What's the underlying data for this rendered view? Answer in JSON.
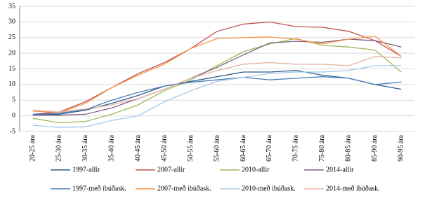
{
  "chart_data": {
    "type": "line",
    "categories": [
      "20-25 ára",
      "25-30 ára",
      "30-35 ára",
      "35-40 ára",
      "40-45 ára",
      "45-50 ára",
      "50-55 ára",
      "55-60 ára",
      "60-65 ára",
      "65-70 ára",
      "70-75 ára",
      "75-80 ára",
      "80-85 ára",
      "85-90 ára",
      "90-95 ára"
    ],
    "series": [
      {
        "name": "1997-allir",
        "color": "#2e5c8a",
        "values": [
          0.3,
          0.5,
          1.8,
          4,
          6.5,
          9.5,
          11,
          12.5,
          14,
          14,
          14.5,
          13,
          12,
          10,
          8.5
        ]
      },
      {
        "name": "2007-allir",
        "color": "#c0504d",
        "values": [
          0.5,
          1.2,
          4.5,
          9,
          13.5,
          17,
          21.5,
          27,
          29.3,
          30,
          28.5,
          28.3,
          27,
          24,
          19
        ]
      },
      {
        "name": "2010-allir",
        "color": "#9bbb59",
        "values": [
          -0.8,
          -2.2,
          -1.8,
          0.5,
          3.5,
          8,
          11.5,
          16,
          20.5,
          23,
          24.7,
          22.5,
          22,
          21,
          14
        ]
      },
      {
        "name": "2014-allir",
        "color": "#7f6084",
        "values": [
          0.2,
          0.2,
          0.5,
          2.5,
          5.5,
          8.5,
          12,
          15.5,
          19.5,
          23.3,
          23.8,
          23.5,
          24.5,
          24,
          22
        ]
      },
      {
        "name": "1997-með íbúðask.",
        "color": "#4a7ebb",
        "values": [
          0.5,
          0.8,
          2,
          5,
          7.5,
          9.5,
          10.7,
          11.5,
          12.3,
          11.5,
          12,
          12.5,
          12,
          10,
          10.8
        ]
      },
      {
        "name": "2007-með íbúðask.",
        "color": "#f79646",
        "values": [
          1.5,
          1,
          4,
          9,
          13,
          16.5,
          21.5,
          24.7,
          25,
          25.2,
          24.5,
          23,
          24.5,
          25.5,
          19
        ]
      },
      {
        "name": "2010-með íbúðask.",
        "color": "#a6c8e8",
        "values": [
          -3,
          -3.7,
          -3.5,
          -1.5,
          0,
          4.5,
          8,
          11,
          12.3,
          13.5,
          14,
          14,
          14.5,
          16,
          16
        ]
      },
      {
        "name": "2014-með íbúðask.",
        "color": "#e6b0a0",
        "values": [
          1.8,
          1.2,
          2.2,
          3.5,
          5.5,
          8.5,
          12,
          14.5,
          16.5,
          17,
          16.5,
          16.5,
          16,
          19,
          18.5
        ]
      }
    ],
    "ylim": [
      -5,
      35
    ],
    "yticks": [
      -5,
      0,
      5,
      10,
      15,
      20,
      25,
      30,
      35
    ],
    "grid": true
  }
}
